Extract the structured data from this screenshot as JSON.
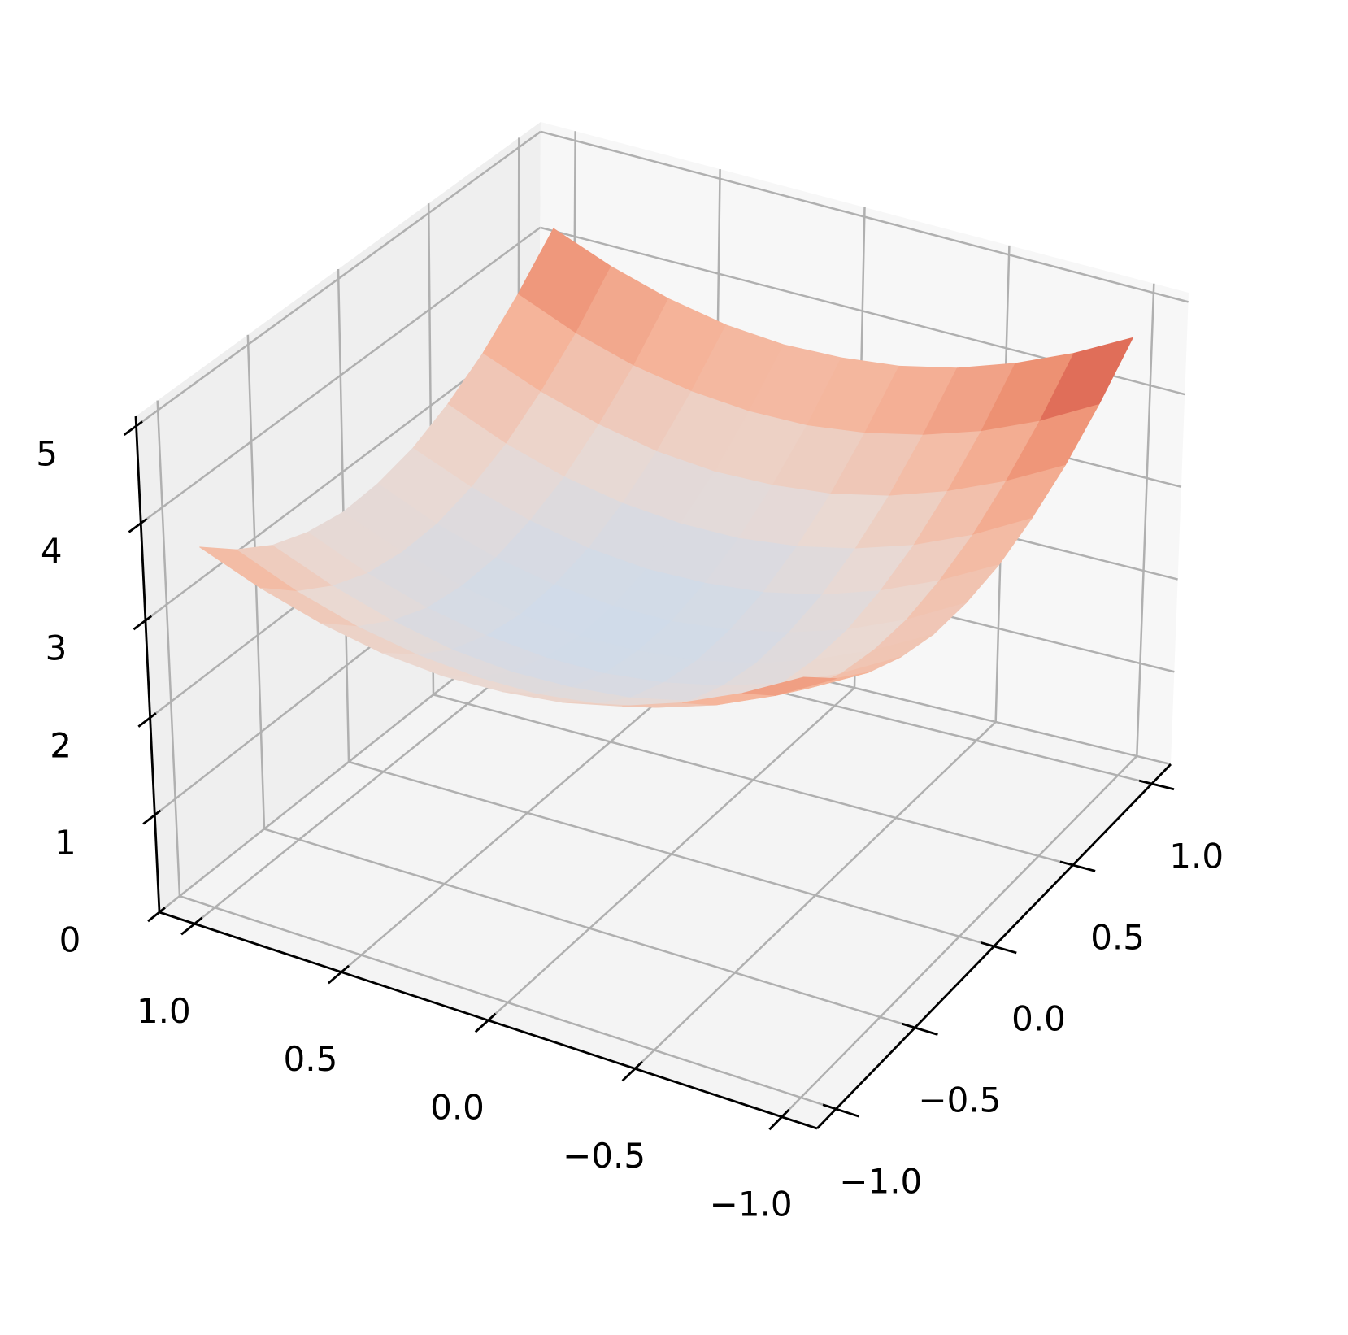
{
  "chart_data": {
    "type": "surface",
    "x": [
      -1,
      -0.8,
      -0.6,
      -0.4,
      -0.2,
      0,
      0.2,
      0.4,
      0.6,
      0.8,
      1
    ],
    "y": [
      -1,
      -0.8,
      -0.6,
      -0.4,
      -0.2,
      0,
      0.2,
      0.4,
      0.6,
      0.8,
      1
    ],
    "z": [
      [
        4.15,
        3.82,
        3.55,
        3.34,
        3.2,
        3.13,
        3.11,
        3.16,
        3.28,
        3.46,
        3.7
      ],
      [
        3.85,
        3.51,
        3.24,
        3.04,
        2.9,
        2.82,
        2.81,
        2.86,
        2.97,
        3.15,
        3.4
      ],
      [
        3.62,
        3.29,
        3.02,
        2.81,
        2.67,
        2.6,
        2.58,
        2.63,
        2.75,
        2.93,
        3.17
      ],
      [
        3.48,
        3.14,
        2.87,
        2.67,
        2.53,
        2.45,
        2.44,
        2.49,
        2.6,
        2.78,
        3.03
      ],
      [
        3.41,
        3.08,
        2.81,
        2.6,
        2.46,
        2.39,
        2.37,
        2.42,
        2.54,
        2.72,
        2.96
      ],
      [
        3.43,
        3.09,
        2.82,
        2.62,
        2.48,
        2.4,
        2.39,
        2.44,
        2.55,
        2.73,
        2.98
      ],
      [
        3.52,
        3.19,
        2.92,
        2.71,
        2.57,
        2.5,
        2.48,
        2.53,
        2.65,
        2.83,
        3.07
      ],
      [
        3.7,
        3.36,
        3.09,
        2.89,
        2.75,
        2.67,
        2.66,
        2.71,
        2.82,
        3.0,
        3.25
      ],
      [
        3.95,
        3.62,
        3.35,
        3.14,
        3.0,
        2.93,
        2.91,
        2.96,
        3.08,
        3.26,
        3.5
      ],
      [
        4.29,
        3.95,
        3.68,
        3.48,
        3.34,
        3.26,
        3.25,
        3.3,
        3.41,
        3.59,
        3.84
      ],
      [
        4.7,
        4.37,
        4.1,
        3.89,
        3.75,
        3.68,
        3.66,
        3.71,
        3.83,
        4.01,
        4.25
      ]
    ],
    "xlim": [
      -1.12,
      1.12
    ],
    "ylim": [
      -1.12,
      1.12
    ],
    "zlim": [
      0,
      5.1
    ],
    "xticks": [
      {
        "value": -1,
        "label": "−1.0"
      },
      {
        "value": -0.5,
        "label": "−0.5"
      },
      {
        "value": 0,
        "label": "0.0"
      },
      {
        "value": 0.5,
        "label": "0.5"
      },
      {
        "value": 1,
        "label": "1.0"
      }
    ],
    "yticks": [
      {
        "value": -1,
        "label": "−1.0"
      },
      {
        "value": -0.5,
        "label": "−0.5"
      },
      {
        "value": 0,
        "label": "0.0"
      },
      {
        "value": 0.5,
        "label": "0.5"
      },
      {
        "value": 1,
        "label": "1.0"
      }
    ],
    "zticks": [
      0,
      1,
      2,
      3,
      4,
      5
    ],
    "grid": true,
    "colormap": [
      "#cfdbea",
      "#ead9d2",
      "#f5b59b",
      "#ec8a6c",
      "#cb3b37"
    ]
  }
}
